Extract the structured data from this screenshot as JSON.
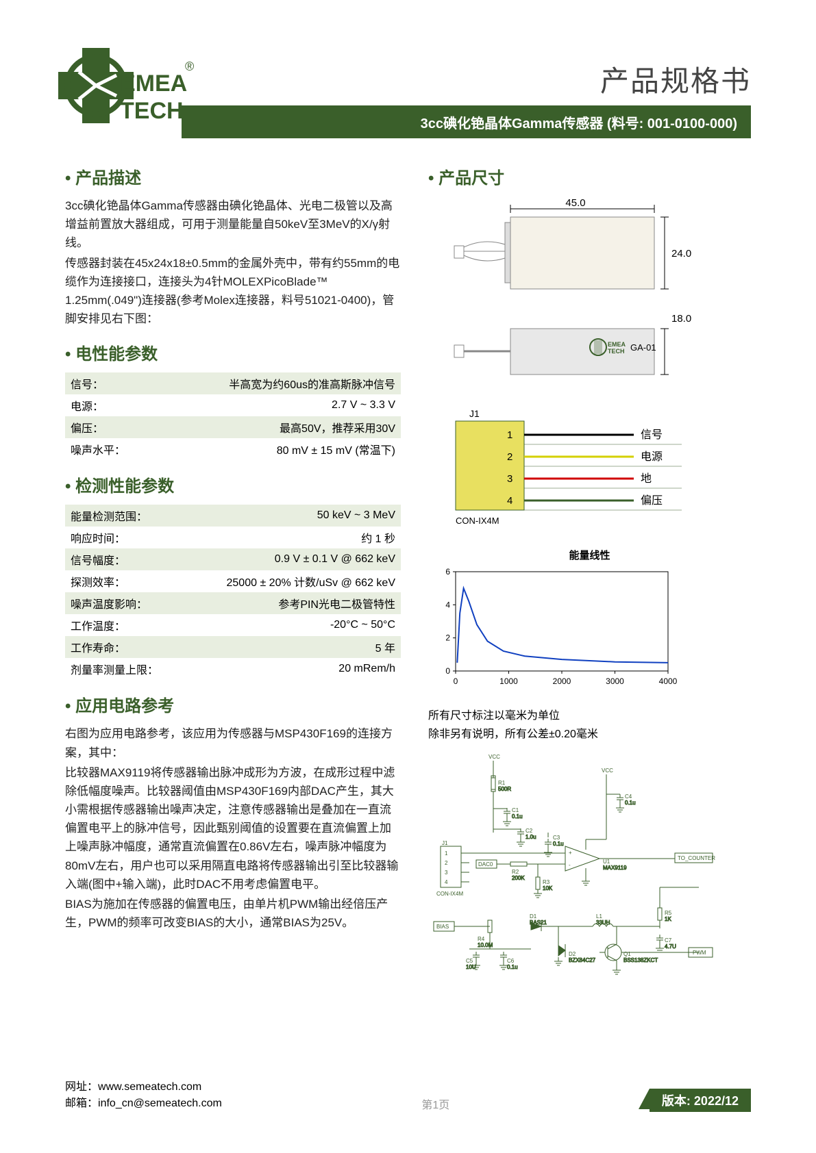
{
  "header": {
    "doc_title": "产品规格书",
    "product_title": "3cc碘化铯晶体Gamma传感器 (料号: 001-0100-000)",
    "logo_brand": "EMEA",
    "logo_sub": "TECH",
    "logo_reg": "®"
  },
  "sections": {
    "desc_title": "产品描述",
    "elec_title": "电性能参数",
    "detect_title": "检测性能参数",
    "circuit_title": "应用电路参考",
    "dim_title": "产品尺寸"
  },
  "description": "3cc碘化铯晶体Gamma传感器由碘化铯晶体、光电二极管以及高增益前置放大器组成，可用于测量能量自50keV至3MeV的X/γ射线。\n传感器封装在45x24x18±0.5mm的金属外壳中，带有约55mm的电缆作为连接接口，连接头为4针MOLEXPicoBlade™ 1.25mm(.049\")连接器(参考Molex连接器，料号51021-0400)，管脚安排见右下图：",
  "elec_params": [
    {
      "k": "信号：",
      "v": "半高宽为约60us的准高斯脉冲信号"
    },
    {
      "k": "电源：",
      "v": "2.7 V ~ 3.3 V"
    },
    {
      "k": "偏压：",
      "v": "最高50V，推荐采用30V"
    },
    {
      "k": "噪声水平：",
      "v": "80 mV ± 15 mV (常温下)"
    }
  ],
  "detect_params": [
    {
      "k": "能量检测范围：",
      "v": "50 keV ~ 3 MeV"
    },
    {
      "k": "响应时间：",
      "v": "约 1 秒"
    },
    {
      "k": "信号幅度：",
      "v": "0.9 V ± 0.1 V @ 662 keV"
    },
    {
      "k": "探测效率：",
      "v": "25000 ± 20% 计数/uSv @ 662 keV"
    },
    {
      "k": "噪声温度影响：",
      "v": "参考PIN光电二极管特性"
    },
    {
      "k": "工作温度：",
      "v": "-20°C ~ 50°C"
    },
    {
      "k": "工作寿命：",
      "v": "5 年"
    },
    {
      "k": "剂量率测量上限：",
      "v": "20 mRem/h"
    }
  ],
  "circuit_text": "右图为应用电路参考，该应用为传感器与MSP430F169的连接方案，其中：\n比较器MAX9119将传感器输出脉冲成形为方波，在成形过程中滤除低幅度噪声。比较器阈值由MSP430F169内部DAC产生，其大小需根据传感器输出噪声决定，注意传感器输出是叠加在一直流偏置电平上的脉冲信号，因此甄别阈值的设置要在直流偏置上加上噪声脉冲幅度，通常直流偏置在0.86V左右，噪声脉冲幅度为80mV左右，用户也可以采用隔直电路将传感器输出引至比较器输入端(图中+输入端)，此时DAC不用考虑偏置电平。\nBIAS为施加在传感器的偏置电压，由单片机PWM输出经倍压产生，PWM的频率可改变BIAS的大小，通常BIAS为25V。",
  "dimensions": {
    "width": "45.0",
    "height": "24.0",
    "depth": "18.0",
    "label": "GA-01"
  },
  "pinout": {
    "conn_label_top": "J1",
    "conn_label_bot": "CON-IX4M",
    "pins": [
      {
        "n": "1",
        "label": "信号",
        "color": "#000000"
      },
      {
        "n": "2",
        "label": "电源",
        "color": "#d4d000"
      },
      {
        "n": "3",
        "label": "地",
        "color": "#d00000"
      },
      {
        "n": "4",
        "label": "偏压",
        "color": "#3a5f2a"
      }
    ]
  },
  "chart": {
    "title": "能量线性",
    "xlim": [
      0,
      4000
    ],
    "ylim": [
      0,
      6
    ],
    "xticks": [
      0,
      1000,
      2000,
      3000,
      4000
    ],
    "yticks": [
      0,
      2,
      4,
      6
    ],
    "line_color": "#1040c0",
    "axis_color": "#000000",
    "bg_color": "#ffffff",
    "points": [
      [
        30,
        0.5
      ],
      [
        80,
        3.5
      ],
      [
        150,
        5.0
      ],
      [
        250,
        4.2
      ],
      [
        400,
        2.8
      ],
      [
        600,
        1.8
      ],
      [
        900,
        1.2
      ],
      [
        1300,
        0.9
      ],
      [
        2000,
        0.7
      ],
      [
        3000,
        0.55
      ],
      [
        4000,
        0.5
      ]
    ]
  },
  "note": "所有尺寸标注以毫米为单位\n除非另有说明，所有公差±0.20毫米",
  "circuit_labels": {
    "vcc": "VCC",
    "r1": "R1\n500R",
    "c1": "C1\n0.1u",
    "c4": "C4\n0.1u",
    "c2": "C2\n1.0u",
    "c3": "C3\n0.1u",
    "dac0": "DAC0",
    "r2": "R2\n200K",
    "r3": "R3\n10K",
    "u1": "U1\nMAX9119",
    "to_counter": "TO_COUNTER",
    "con": "CON-IX4M",
    "j1": "J1",
    "bias": "BIAS",
    "r4": "R4\n10.0M",
    "d1": "D1\nBAS21",
    "d2": "D2\nBZX84C27",
    "l1": "L1\n33UH",
    "r5": "R5\n1K",
    "c7": "C7\n4.7U",
    "q1": "Q1\nBSS138ZKCT",
    "pwm": "PWM",
    "c5": "C5\n10U",
    "c6": "C6\n0.1u"
  },
  "footer": {
    "web_k": "网址：",
    "web_v": "www.semeatech.com",
    "mail_k": "邮箱：",
    "mail_v": "info_cn@semeatech.com",
    "page": "第1页",
    "version": "版本: 2022/12"
  },
  "colors": {
    "brand": "#3a5f2a",
    "spec_row": "#e8eee0"
  }
}
